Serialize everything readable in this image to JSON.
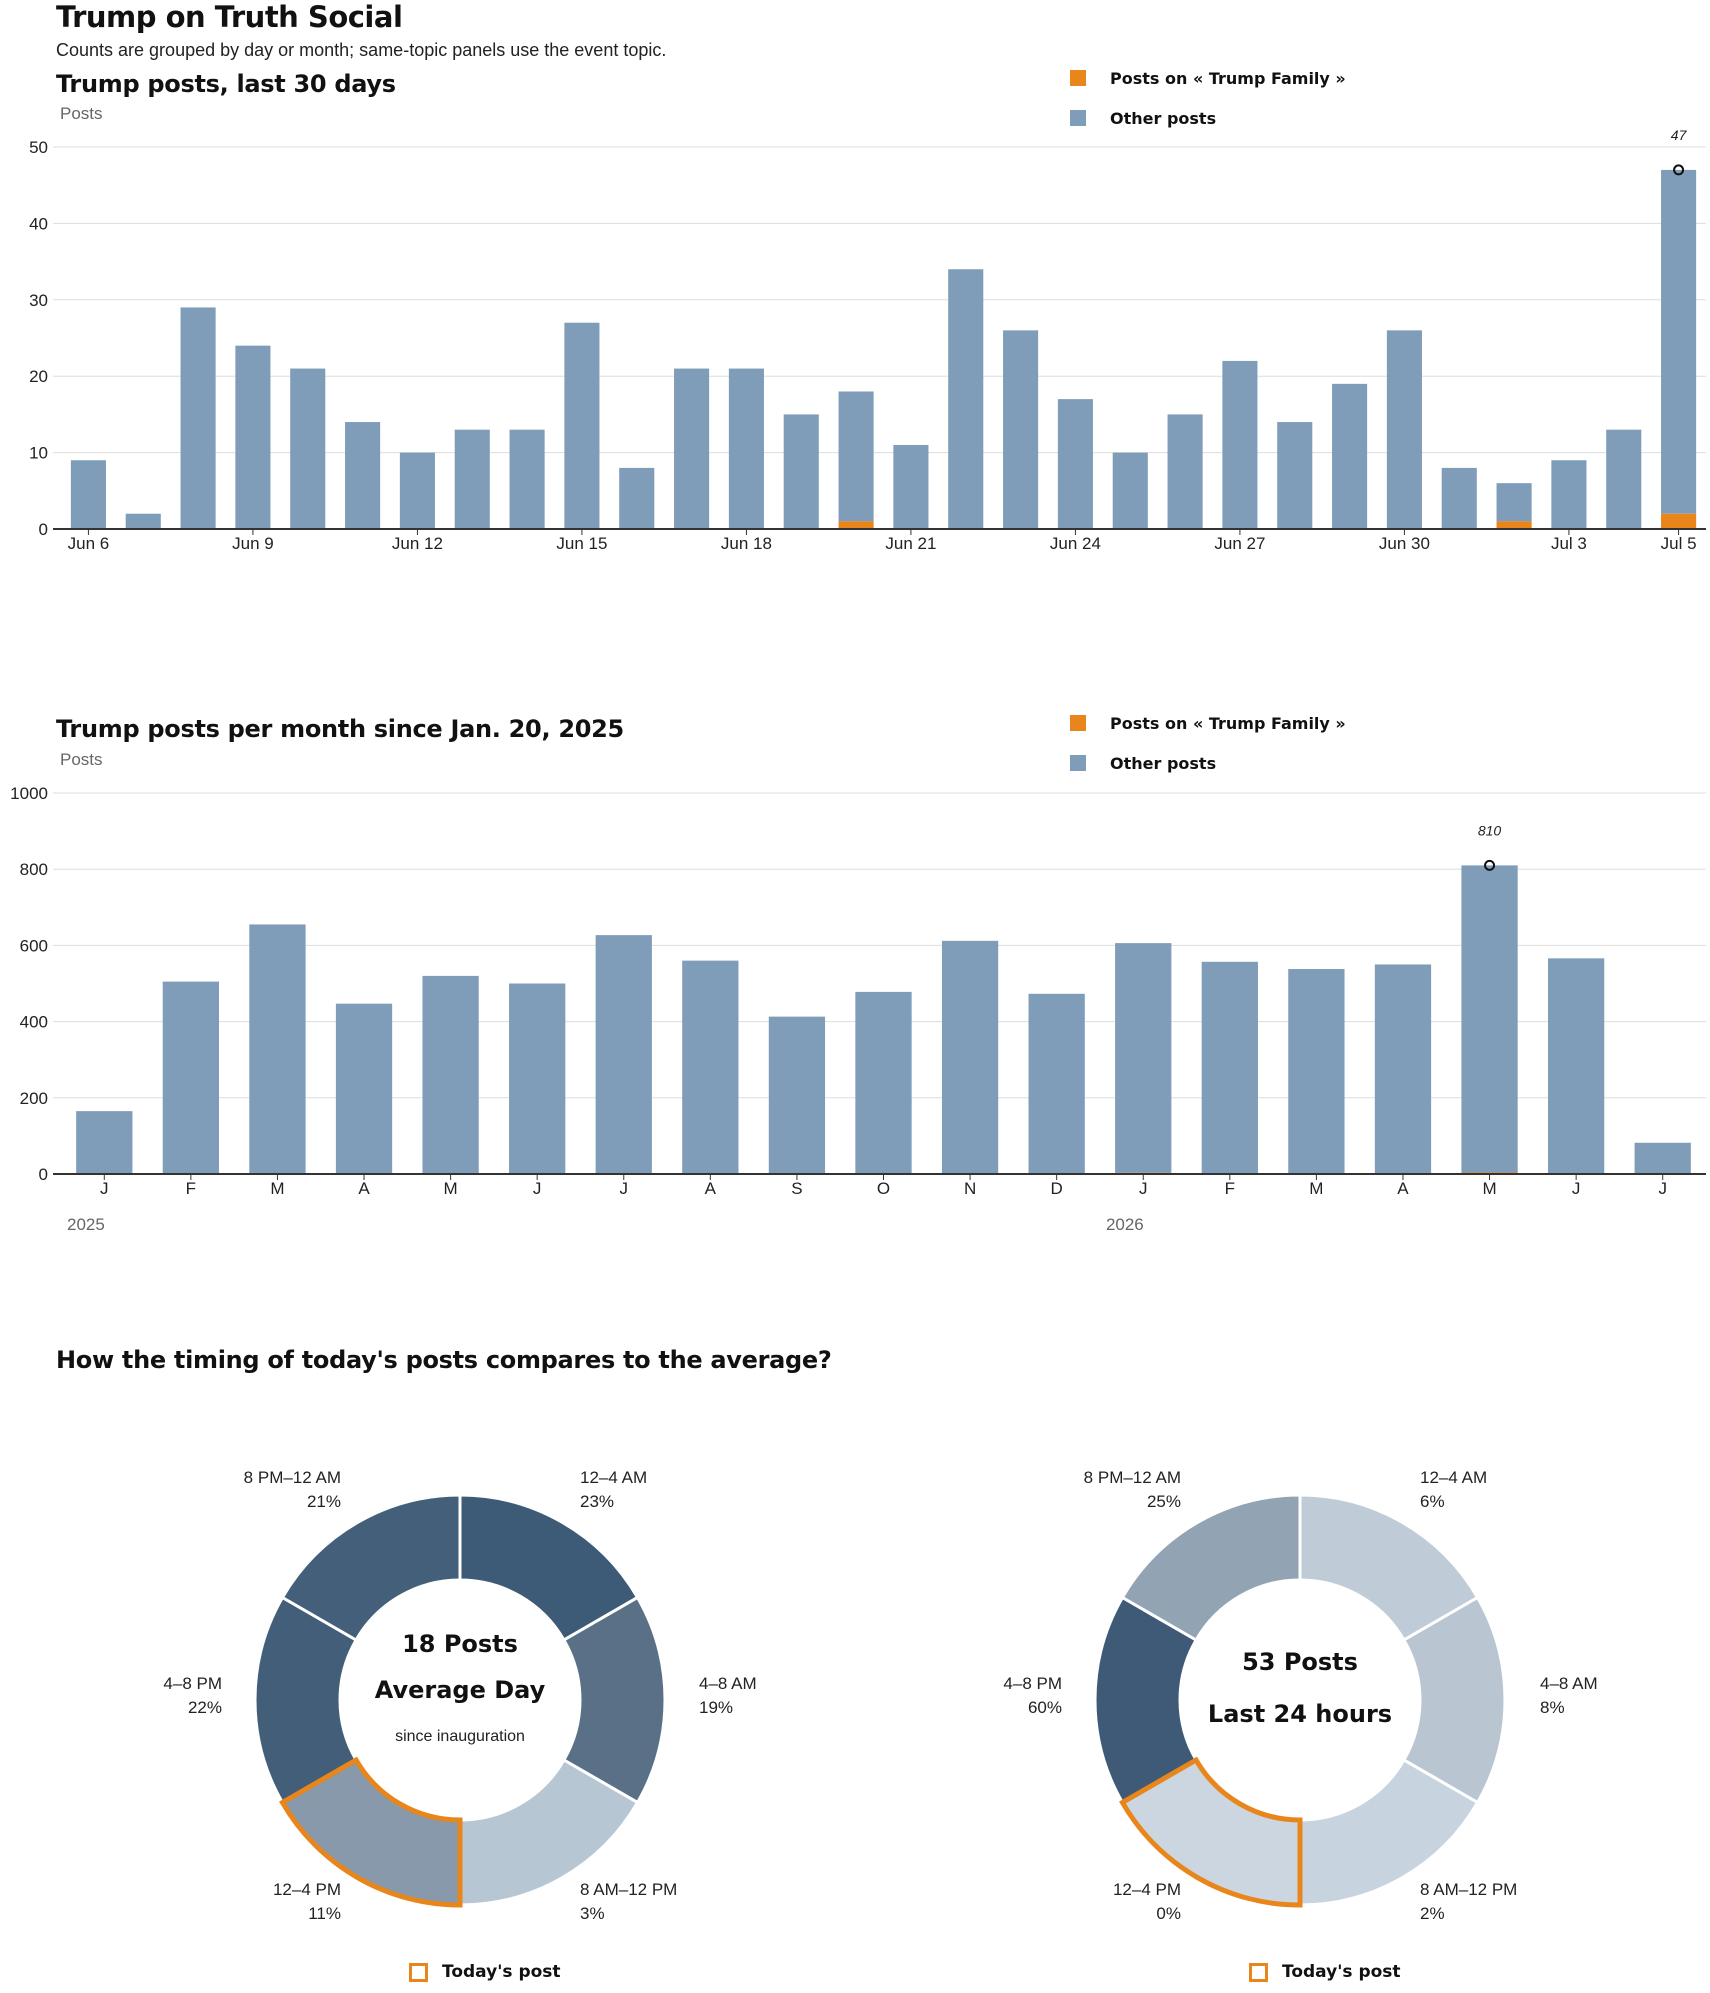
{
  "header": {
    "title": "Trump on Truth Social",
    "subtitle": "Counts are grouped by day or month; same-topic panels use the event topic."
  },
  "colors": {
    "topic": "#e8861b",
    "other": "#7f9db9",
    "highlight": "#e8861b"
  },
  "legend": {
    "topic_label": "Posts on « Trump Family »",
    "other_label": "Other posts"
  },
  "chart_data": [
    {
      "type": "bar",
      "title": "Trump posts, last 30 days",
      "ylabel": "Posts",
      "ylim": [
        0,
        50
      ],
      "yticks": [
        0,
        10,
        20,
        30,
        40,
        50
      ],
      "categories": [
        "Jun 6",
        "Jun 7",
        "Jun 8",
        "Jun 9",
        "Jun 10",
        "Jun 11",
        "Jun 12",
        "Jun 13",
        "Jun 14",
        "Jun 15",
        "Jun 16",
        "Jun 17",
        "Jun 18",
        "Jun 19",
        "Jun 20",
        "Jun 21",
        "Jun 22",
        "Jun 23",
        "Jun 24",
        "Jun 25",
        "Jun 26",
        "Jun 27",
        "Jun 28",
        "Jun 29",
        "Jun 30",
        "Jul 1",
        "Jul 2",
        "Jul 3",
        "Jul 4",
        "Jul 5"
      ],
      "tick_labels": [
        {
          "index": 0,
          "label": "Jun 6"
        },
        {
          "index": 3,
          "label": "Jun 9"
        },
        {
          "index": 6,
          "label": "Jun 12"
        },
        {
          "index": 9,
          "label": "Jun 15"
        },
        {
          "index": 12,
          "label": "Jun 18"
        },
        {
          "index": 15,
          "label": "Jun 21"
        },
        {
          "index": 18,
          "label": "Jun 24"
        },
        {
          "index": 21,
          "label": "Jun 27"
        },
        {
          "index": 24,
          "label": "Jun 30"
        },
        {
          "index": 27,
          "label": "Jul 3"
        },
        {
          "index": 29,
          "label": "Jul 5"
        }
      ],
      "series": [
        {
          "name": "Posts on « Trump Family »",
          "values": [
            0,
            0,
            0,
            0,
            0,
            0,
            0,
            0,
            0,
            0,
            0,
            0,
            0,
            0,
            1,
            0,
            0,
            0,
            0,
            0,
            0,
            0,
            0,
            0,
            0,
            0,
            1,
            0,
            0,
            2
          ]
        },
        {
          "name": "Other posts",
          "values": [
            9,
            2,
            29,
            24,
            21,
            14,
            10,
            13,
            13,
            27,
            8,
            21,
            21,
            15,
            17,
            11,
            34,
            26,
            17,
            10,
            15,
            22,
            14,
            19,
            26,
            8,
            5,
            9,
            13,
            45
          ]
        }
      ],
      "annotation": {
        "index": 29,
        "label": "47"
      },
      "grid": true,
      "legend_position": "top-right"
    },
    {
      "type": "bar",
      "title": "Trump posts per month since Jan. 20, 2025",
      "ylabel": "Posts",
      "ylim": [
        0,
        1000
      ],
      "yticks": [
        0,
        200,
        400,
        600,
        800,
        1000
      ],
      "categories": [
        "J",
        "F",
        "M",
        "A",
        "M",
        "J",
        "J",
        "A",
        "S",
        "O",
        "N",
        "D",
        "J",
        "F",
        "M",
        "A",
        "M",
        "J",
        "J"
      ],
      "year_labels": [
        {
          "index": 0,
          "label": "2025"
        },
        {
          "index": 12,
          "label": "2026"
        }
      ],
      "series": [
        {
          "name": "Posts on « Trump Family »",
          "values": [
            0,
            0,
            0,
            0,
            0,
            0,
            0,
            0,
            0,
            0,
            0,
            0,
            3,
            0,
            0,
            0,
            4,
            0,
            0
          ]
        },
        {
          "name": "Other posts",
          "values": [
            165,
            505,
            655,
            447,
            520,
            500,
            627,
            560,
            413,
            478,
            612,
            473,
            603,
            557,
            538,
            550,
            806,
            566,
            82
          ]
        }
      ],
      "annotation": {
        "index": 16,
        "label": "810"
      },
      "grid": true,
      "legend_position": "top-right"
    }
  ],
  "timing": {
    "title": "How the timing of today's posts compares to the average?",
    "average": {
      "count_label": "18 Posts",
      "period_label": "Average Day",
      "note": "since inauguration",
      "slices": [
        {
          "label": "12–4 AM",
          "pct": "23%",
          "value": 23,
          "color": "#3d5a77"
        },
        {
          "label": "4–8 AM",
          "pct": "19%",
          "value": 19,
          "color": "#5a7087"
        },
        {
          "label": "8 AM–12 PM",
          "pct": "3%",
          "value": 3,
          "color": "#b7c6d3"
        },
        {
          "label": "12–4 PM",
          "pct": "11%",
          "value": 11,
          "color": "#8799ab"
        },
        {
          "label": "4–8 PM",
          "pct": "22%",
          "value": 22,
          "color": "#435e79"
        },
        {
          "label": "8 PM–12 AM",
          "pct": "21%",
          "value": 21,
          "color": "#445f7a"
        }
      ],
      "highlight_index": 3
    },
    "today": {
      "count_label": "53 Posts",
      "period_label": "Last 24 hours",
      "slices": [
        {
          "label": "12–4 AM",
          "pct": "6%",
          "value": 6,
          "color": "#bfcbd6"
        },
        {
          "label": "4–8 AM",
          "pct": "8%",
          "value": 8,
          "color": "#b9c6d2"
        },
        {
          "label": "8 AM–12 PM",
          "pct": "2%",
          "value": 2,
          "color": "#c7d3de"
        },
        {
          "label": "12–4 PM",
          "pct": "0%",
          "value": 0,
          "color": "#cbd6e0"
        },
        {
          "label": "4–8 PM",
          "pct": "60%",
          "value": 60,
          "color": "#3f5a77"
        },
        {
          "label": "8 PM–12 AM",
          "pct": "25%",
          "value": 25,
          "color": "#92a3b4"
        }
      ],
      "highlight_index": 3
    },
    "today_post_label": "Today's post"
  }
}
